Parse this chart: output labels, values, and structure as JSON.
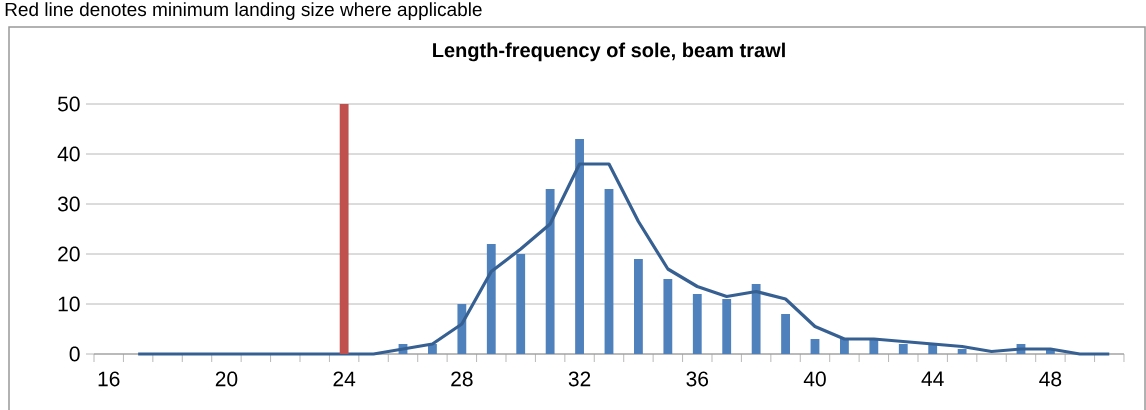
{
  "chart_data": {
    "type": "bar",
    "title": "Length-frequency of sole, beam trawl",
    "annotations": [
      "Red line denotes minimum landing size where applicable"
    ],
    "categories": [
      "16",
      null,
      null,
      null,
      "20",
      null,
      null,
      null,
      "24",
      null,
      null,
      null,
      "28",
      null,
      null,
      null,
      "32",
      null,
      null,
      null,
      "36",
      null,
      null,
      null,
      "40",
      null,
      null,
      null,
      "44",
      null,
      null,
      null,
      "48",
      null,
      null
    ],
    "series": [
      {
        "color": "#4f81bd",
        "values": [
          0,
          0,
          0,
          0,
          0,
          0,
          0,
          0,
          0,
          0,
          2,
          2,
          10,
          22,
          20,
          33,
          43,
          33,
          19,
          15,
          12,
          11,
          14,
          8,
          3,
          3,
          3,
          2,
          2,
          1,
          0,
          2,
          1,
          0,
          0
        ]
      },
      {
        "type": "line",
        "color": "#376092",
        "values": [
          null,
          0,
          0,
          0,
          0,
          0,
          0,
          0,
          0,
          0,
          1,
          2,
          6,
          16.5,
          21,
          26,
          38,
          38,
          26.5,
          17,
          13.5,
          11.5,
          12.5,
          11,
          5.5,
          3,
          3,
          2.5,
          2,
          1.5,
          0.5,
          1,
          1,
          0,
          0
        ]
      },
      {
        "color": "#c0504d",
        "values": [
          null,
          null,
          null,
          null,
          null,
          null,
          null,
          null,
          50,
          null,
          null,
          null,
          null,
          null,
          null,
          null,
          null,
          null,
          null,
          null,
          null,
          null,
          null,
          null,
          null,
          null,
          null,
          null,
          null,
          null,
          null,
          null,
          null,
          null,
          null
        ]
      }
    ],
    "ylim": [
      0,
      50
    ],
    "yticks": [
      0,
      10,
      20,
      30,
      40,
      50
    ],
    "grid": "y"
  }
}
